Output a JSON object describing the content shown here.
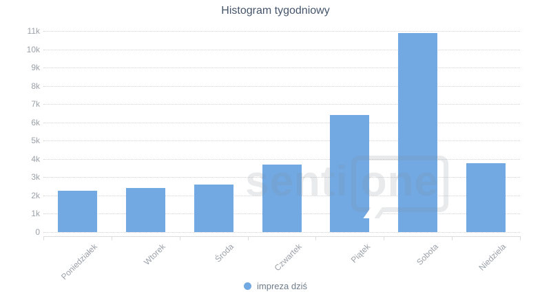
{
  "chart": {
    "title": "Histogram tygodniowy"
  },
  "legend": {
    "label": "impreza dziś"
  },
  "watermark": {
    "text_left": "senti",
    "text_bubble": "one"
  },
  "colors": {
    "bar": "#72a9e3",
    "title_text": "#44546a",
    "axis_label": "#9aa0a8",
    "gridline": "#d2d2d2",
    "axis_line": "#dcdcdc",
    "legend_text": "#6e7b8a"
  },
  "chart_data": {
    "type": "bar",
    "title": "Histogram tygodniowy",
    "categories": [
      "Poniedziałek",
      "Wtorek",
      "Środa",
      "Czwartek",
      "Piątek",
      "Sobota",
      "Niedziela"
    ],
    "series": [
      {
        "name": "impreza dziś",
        "values": [
          2250,
          2400,
          2600,
          3700,
          6400,
          10900,
          3780
        ]
      }
    ],
    "xlabel": "",
    "ylabel": "",
    "ylim": [
      0,
      11000
    ],
    "y_tick_labels": [
      "0",
      "1k",
      "2k",
      "3k",
      "4k",
      "5k",
      "6k",
      "7k",
      "8k",
      "9k",
      "10k",
      "11k"
    ],
    "y_tick_values": [
      0,
      1000,
      2000,
      3000,
      4000,
      5000,
      6000,
      7000,
      8000,
      9000,
      10000,
      11000
    ],
    "grid": "horizontal-dotted",
    "x_label_rotation": 45,
    "legend_position": "bottom-center"
  }
}
